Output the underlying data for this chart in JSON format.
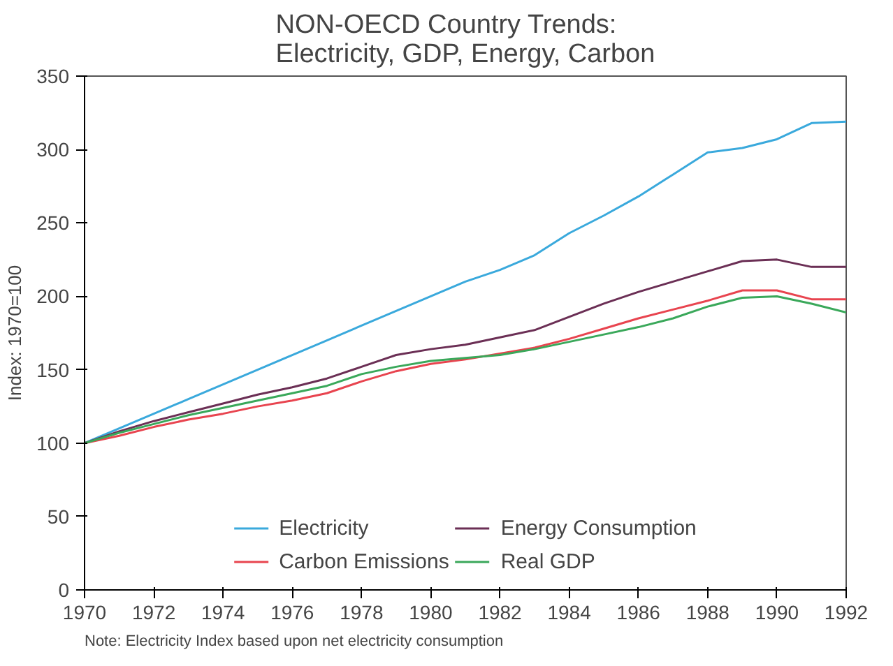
{
  "chart_data": {
    "type": "line",
    "title": "NON-OECD Country Trends:\nElectricity, GDP, Energy, Carbon",
    "ylabel": "Index: 1970=100",
    "x": [
      1970,
      1971,
      1972,
      1973,
      1974,
      1975,
      1976,
      1977,
      1978,
      1979,
      1980,
      1981,
      1982,
      1983,
      1984,
      1985,
      1986,
      1987,
      1988,
      1989,
      1990,
      1991,
      1992
    ],
    "xlim": [
      1970,
      1992
    ],
    "xticks": [
      1970,
      1972,
      1974,
      1976,
      1978,
      1980,
      1982,
      1984,
      1986,
      1988,
      1990,
      1992
    ],
    "ylim": [
      0,
      350
    ],
    "yticks": [
      0,
      50,
      100,
      150,
      200,
      250,
      300,
      350
    ],
    "grid": false,
    "legend": "bottom",
    "annotations": [
      "Note: Electricity Index based upon net electricity consumption"
    ],
    "series": [
      {
        "name": "Electricity",
        "color": "#3aa9dc",
        "values": [
          100,
          110,
          120,
          130,
          140,
          150,
          160,
          170,
          180,
          190,
          200,
          210,
          218,
          228,
          243,
          255,
          268,
          283,
          298,
          301,
          307,
          318,
          319
        ]
      },
      {
        "name": "Energy Consumption",
        "color": "#6b2f55",
        "values": [
          100,
          108,
          115,
          121,
          127,
          133,
          138,
          144,
          152,
          160,
          164,
          167,
          172,
          177,
          186,
          195,
          203,
          210,
          217,
          224,
          225,
          220,
          220
        ]
      },
      {
        "name": "Carbon Emissions",
        "color": "#e8444f",
        "values": [
          100,
          105,
          111,
          116,
          120,
          125,
          129,
          134,
          142,
          149,
          154,
          157,
          161,
          165,
          171,
          178,
          185,
          191,
          197,
          204,
          204,
          198,
          198
        ]
      },
      {
        "name": "Real GDP",
        "color": "#3aa85a",
        "values": [
          100,
          107,
          113,
          119,
          124,
          129,
          134,
          139,
          147,
          152,
          156,
          158,
          160,
          164,
          169,
          174,
          179,
          185,
          193,
          199,
          200,
          195,
          189
        ]
      }
    ]
  }
}
